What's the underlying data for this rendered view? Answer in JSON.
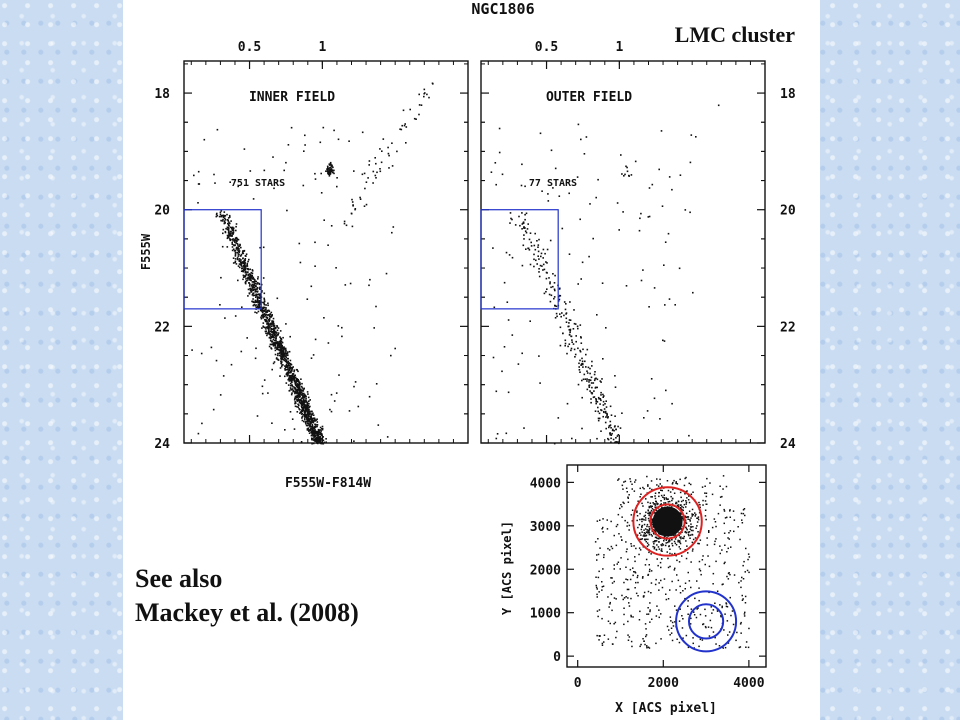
{
  "slide": {
    "tag": "LMC cluster",
    "note_line1": "See also",
    "note_line2": "Mackey et al. (2008)"
  },
  "colors": {
    "points": "#111111",
    "box": "#2233cc",
    "cluster_circle": "#dd2222",
    "field_circle": "#2233cc",
    "panel_bg": "#ffffff",
    "slide_bg": "#c9dcf2"
  },
  "chart_data": [
    {
      "type": "scatter",
      "title": "NGC1806",
      "panel_label": "INNER FIELD",
      "count_label": "751 STARS",
      "xlabel": "F555W-F814W",
      "ylabel": "F555W",
      "xticks_top": [
        0.5,
        1
      ],
      "yticks": [
        18,
        20,
        22,
        24
      ],
      "xlim": [
        0.05,
        2.0
      ],
      "ylim": [
        24.0,
        17.45
      ],
      "y_inverted": true,
      "selection_box": {
        "x": [
          0.05,
          0.58
        ],
        "y": [
          20.0,
          21.7
        ]
      },
      "n_points": 751
    },
    {
      "type": "scatter",
      "panel_label": "OUTER FIELD",
      "count_label": "77 STARS",
      "xticks_top": [
        0.5,
        1
      ],
      "yticks": [
        18,
        20,
        22,
        24
      ],
      "xlim": [
        0.05,
        2.0
      ],
      "ylim": [
        24.0,
        17.45
      ],
      "y_inverted": true,
      "selection_box": {
        "x": [
          0.05,
          0.58
        ],
        "y": [
          20.0,
          21.7
        ]
      },
      "n_points": 77
    },
    {
      "type": "scatter",
      "xlabel": "X [ACS pixel]",
      "ylabel": "Y [ACS pixel]",
      "xticks": [
        0,
        2000,
        4000
      ],
      "yticks": [
        0,
        1000,
        2000,
        3000,
        4000
      ],
      "xlim": [
        -250,
        4400
      ],
      "ylim": [
        -250,
        4400
      ],
      "cluster_center": [
        2100,
        3100
      ],
      "cluster_radii": [
        400,
        800
      ],
      "field_center": [
        3000,
        800
      ],
      "field_radii": [
        400,
        700
      ]
    }
  ]
}
